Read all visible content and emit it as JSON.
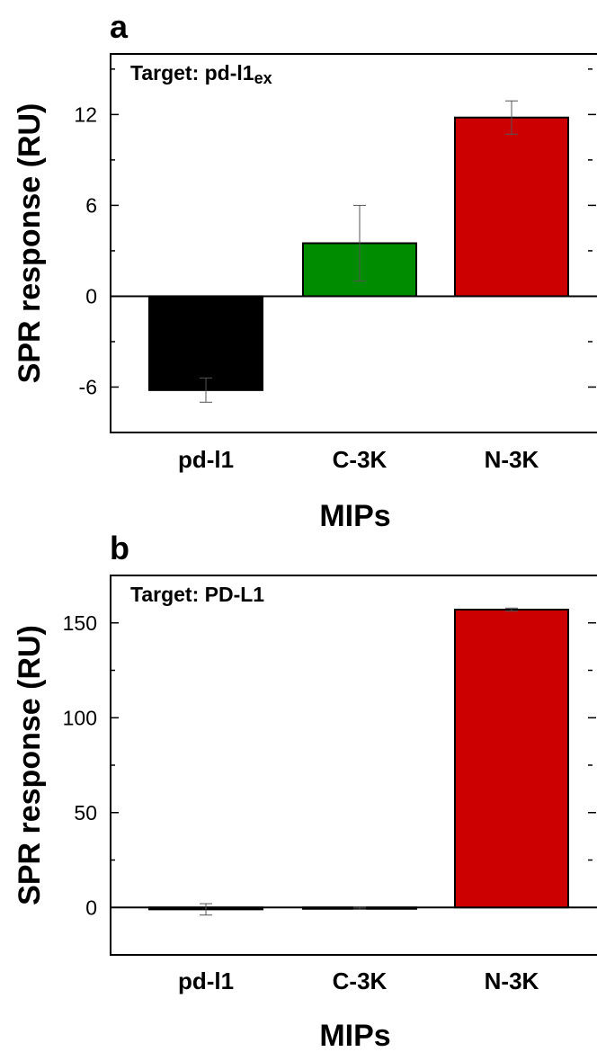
{
  "chart_data": [
    {
      "type": "bar",
      "panel_label": "a",
      "annotation": "Target: pd-l1",
      "annotation_sub": "ex",
      "categories": [
        "pd-l1",
        "C-3K",
        "N-3K"
      ],
      "values": [
        -6.2,
        3.5,
        11.8
      ],
      "errors": [
        0.8,
        2.5,
        1.1
      ],
      "colors": [
        "#000000",
        "#008c00",
        "#cc0000"
      ],
      "xlabel": "MIPs",
      "ylabel": "SPR response (RU)",
      "ylim": [
        -9,
        16
      ],
      "yticks": [
        -6,
        0,
        6,
        12
      ],
      "yticklabels": [
        "-6",
        "0",
        "6",
        "12"
      ],
      "grid": false,
      "zero_line": true
    },
    {
      "type": "bar",
      "panel_label": "b",
      "annotation": "Target: PD-L1",
      "categories": [
        "pd-l1",
        "C-3K",
        "N-3K"
      ],
      "values": [
        -1.0,
        -0.4,
        157
      ],
      "errors": [
        3.0,
        0.5,
        0.8
      ],
      "colors": [
        "#000000",
        "#008c00",
        "#cc0000"
      ],
      "xlabel": "MIPs",
      "ylabel": "SPR response (RU)",
      "ylim": [
        -25,
        175
      ],
      "yticks": [
        0,
        50,
        100,
        150
      ],
      "yticklabels": [
        "0",
        "50",
        "100",
        "150"
      ],
      "grid": false,
      "zero_line": true
    }
  ]
}
